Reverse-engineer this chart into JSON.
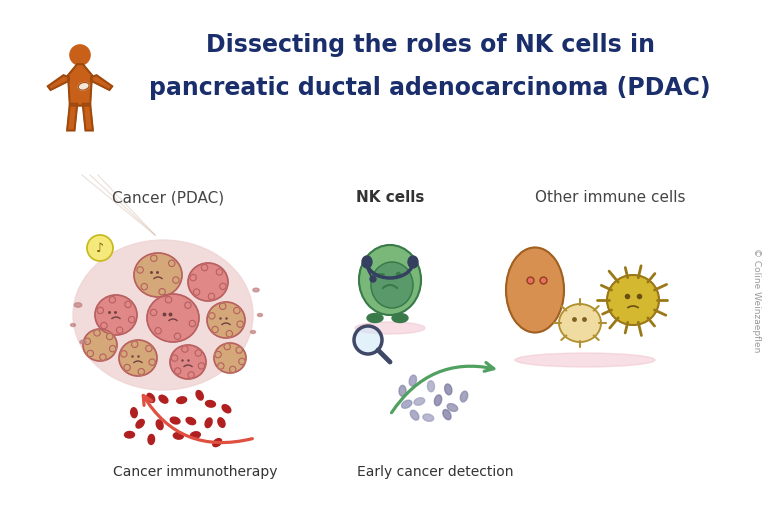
{
  "title_line1": "Dissecting the roles of NK cells in",
  "title_line2": "pancreatic ductal adenocarcinoma (PDAC)",
  "title_color": "#1a2e6b",
  "title_fontsize": 17,
  "label_cancer": "Cancer (PDAC)",
  "label_nk": "NK cells",
  "label_other": "Other immune cells",
  "label_immunotherapy": "Cancer immunotherapy",
  "label_detection": "Early cancer detection",
  "label_author": "© Coline Weinzaepflen",
  "bg_color": "#ffffff",
  "human_color": "#c8601a",
  "human_outline": "#9e4a0e",
  "cancer_bg": "#f0d5d5",
  "cancer_cell_pink": "#e08888",
  "cancer_cell_peach": "#d4a878",
  "nk_cell_green": "#7ab87a",
  "nk_cell_dark": "#4a8a5a",
  "immune_orange": "#e8a060",
  "immune_yellow": "#d4b030",
  "immune_light": "#f0d898",
  "arrow_red": "#e05040",
  "arrow_green": "#50a060",
  "dots_red": "#b02020",
  "dots_gray": "#9090b0",
  "label_fontsize": 11,
  "sub_label_fontsize": 10
}
